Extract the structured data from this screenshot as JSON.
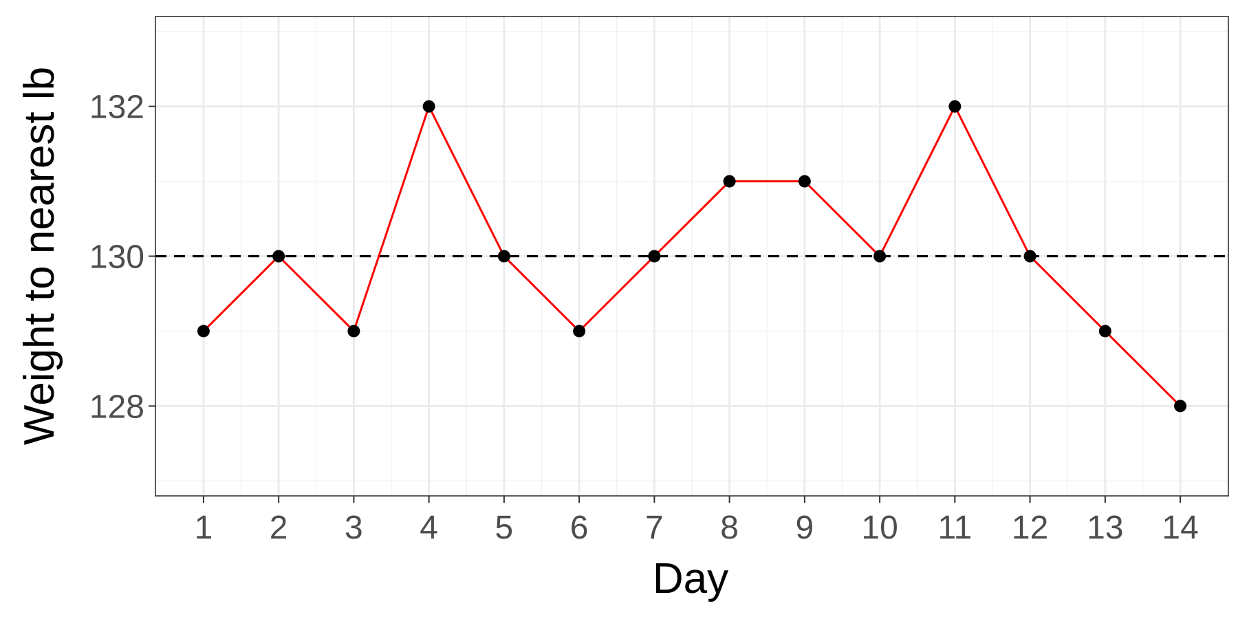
{
  "chart_data": {
    "type": "line",
    "title": "",
    "xlabel": "Day",
    "ylabel": "Weight to nearest lb",
    "x": [
      1,
      2,
      3,
      4,
      5,
      6,
      7,
      8,
      9,
      10,
      11,
      12,
      13,
      14
    ],
    "series": [
      {
        "values": [
          129,
          130,
          129,
          132,
          130,
          129,
          130,
          131,
          131,
          130,
          132,
          130,
          129,
          128
        ],
        "line_color": "#ff0000",
        "point_color": "#000000"
      }
    ],
    "reference_line": {
      "y": 130,
      "style": "dashed",
      "color": "#000000"
    },
    "xlim": [
      0.36,
      14.64
    ],
    "ylim": [
      126.8,
      133.2
    ],
    "x_ticks": [
      1,
      2,
      3,
      4,
      5,
      6,
      7,
      8,
      9,
      10,
      11,
      12,
      13,
      14
    ],
    "y_ticks": [
      128,
      130,
      132
    ],
    "grid": true,
    "legend": "none",
    "colors": {
      "panel_border": "#333333",
      "grid_major": "#ebebeb",
      "grid_minor": "#f2f2f2"
    }
  }
}
